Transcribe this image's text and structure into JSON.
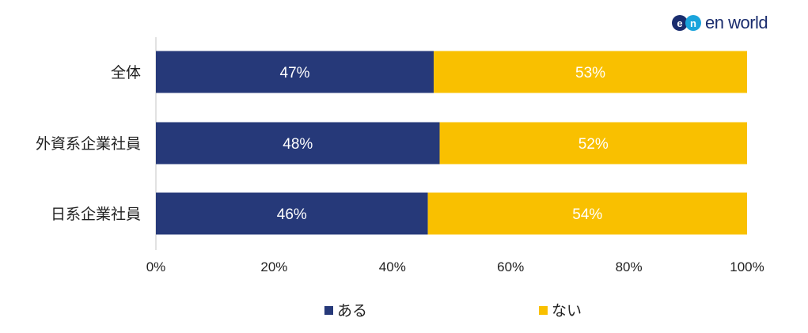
{
  "brand": {
    "logo_text": "en world"
  },
  "chart_data": {
    "type": "bar",
    "orientation": "horizontal",
    "stacked": true,
    "categories": [
      "全体",
      "外資系企業社員",
      "日系企業社員"
    ],
    "series": [
      {
        "name": "ある",
        "values": [
          47,
          48,
          46
        ],
        "labels": [
          "47%",
          "48%",
          "46%"
        ],
        "color": "#263979"
      },
      {
        "name": "ない",
        "values": [
          53,
          52,
          54
        ],
        "labels": [
          "53%",
          "52%",
          "54%"
        ],
        "color": "#f9c000"
      }
    ],
    "x_ticks": [
      "0%",
      "20%",
      "40%",
      "60%",
      "80%",
      "100%"
    ],
    "xlim": [
      0,
      100
    ],
    "grid": false,
    "legend_position": "bottom",
    "title": "",
    "xlabel": "",
    "ylabel": ""
  }
}
